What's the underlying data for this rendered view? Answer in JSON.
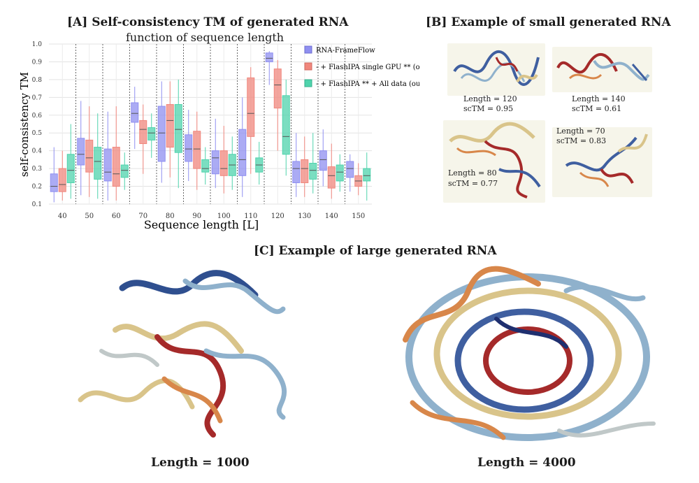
{
  "panel_a": {
    "title": "[A] Self-consistency TM of generated RNA",
    "subtitle": "function of sequence length"
  },
  "panel_b": {
    "title": "[B] Example of small generated RNA",
    "examples": [
      {
        "length": "Length = 120",
        "sctm": "scTM = 0.95"
      },
      {
        "length": "Length = 140",
        "sctm": "scTM = 0.61"
      },
      {
        "length": "Length = 80",
        "sctm": "scTM = 0.77"
      },
      {
        "length": "Length = 70",
        "sctm": "scTM = 0.83"
      }
    ]
  },
  "panel_c": {
    "title": "[C] Example of large generated RNA",
    "captions": [
      "Length = 1000",
      "Length = 4000"
    ]
  },
  "colors": {
    "rna_frameflow": "#8f8ff0",
    "flashipa_single_gpu": "#f0877d",
    "flashipa_all_data": "#4fd3ac",
    "rna_blue": "#3f5fa0",
    "rna_lightblue": "#8fb1cc",
    "rna_red": "#a52a2a",
    "rna_orange": "#d8874a",
    "rna_tan": "#d9c48a"
  },
  "chart_data": {
    "type": "box",
    "xlabel": "Sequence length [L]",
    "ylabel": "self-consistency TM",
    "ylim": [
      0.1,
      1.0
    ],
    "yticks": [
      "0.1",
      "0.2",
      "0.3",
      "0.4",
      "0.5",
      "0.6",
      "0.7",
      "0.8",
      "0.9",
      "1.0"
    ],
    "categories": [
      "40",
      "50",
      "60",
      "70",
      "80",
      "90",
      "100",
      "110",
      "120",
      "130",
      "140",
      "150"
    ],
    "grid": true,
    "legend_position": "top-right",
    "series": [
      {
        "name": "RNA-FrameFlow",
        "color": "#8f8ff0",
        "boxes": [
          {
            "q1": 0.17,
            "median": 0.2,
            "q3": 0.27,
            "lo": 0.11,
            "hi": 0.42
          },
          {
            "q1": 0.32,
            "median": 0.38,
            "q3": 0.47,
            "lo": 0.15,
            "hi": 0.68
          },
          {
            "q1": 0.23,
            "median": 0.28,
            "q3": 0.41,
            "lo": 0.12,
            "hi": 0.62
          },
          {
            "q1": 0.56,
            "median": 0.61,
            "q3": 0.67,
            "lo": 0.41,
            "hi": 0.76
          },
          {
            "q1": 0.34,
            "median": 0.5,
            "q3": 0.65,
            "lo": 0.22,
            "hi": 0.79
          },
          {
            "q1": 0.34,
            "median": 0.41,
            "q3": 0.49,
            "lo": 0.23,
            "hi": 0.63
          },
          {
            "q1": 0.27,
            "median": 0.36,
            "q3": 0.4,
            "lo": 0.19,
            "hi": 0.58
          },
          {
            "q1": 0.26,
            "median": 0.35,
            "q3": 0.52,
            "lo": 0.14,
            "hi": 0.7
          },
          {
            "q1": 0.9,
            "median": 0.92,
            "q3": 0.95,
            "lo": 0.77,
            "hi": 0.96
          },
          {
            "q1": 0.22,
            "median": 0.3,
            "q3": 0.34,
            "lo": 0.14,
            "hi": 0.5
          },
          {
            "q1": 0.29,
            "median": 0.35,
            "q3": 0.4,
            "lo": 0.2,
            "hi": 0.52
          },
          {
            "q1": 0.25,
            "median": 0.3,
            "q3": 0.34,
            "lo": 0.17,
            "hi": 0.38
          }
        ]
      },
      {
        "name": "- + FlashIPA single GPU ** (ours)",
        "color": "#f0877d",
        "boxes": [
          {
            "q1": 0.17,
            "median": 0.21,
            "q3": 0.3,
            "lo": 0.12,
            "hi": 0.4
          },
          {
            "q1": 0.28,
            "median": 0.36,
            "q3": 0.46,
            "lo": 0.14,
            "hi": 0.65
          },
          {
            "q1": 0.2,
            "median": 0.27,
            "q3": 0.42,
            "lo": 0.12,
            "hi": 0.65
          },
          {
            "q1": 0.44,
            "median": 0.52,
            "q3": 0.57,
            "lo": 0.27,
            "hi": 0.66
          },
          {
            "q1": 0.42,
            "median": 0.57,
            "q3": 0.66,
            "lo": 0.25,
            "hi": 0.79
          },
          {
            "q1": 0.3,
            "median": 0.41,
            "q3": 0.51,
            "lo": 0.18,
            "hi": 0.62
          },
          {
            "q1": 0.26,
            "median": 0.3,
            "q3": 0.4,
            "lo": 0.16,
            "hi": 0.54
          },
          {
            "q1": 0.48,
            "median": 0.61,
            "q3": 0.81,
            "lo": 0.27,
            "hi": 0.87
          },
          {
            "q1": 0.64,
            "median": 0.77,
            "q3": 0.86,
            "lo": 0.4,
            "hi": 0.91
          },
          {
            "q1": 0.22,
            "median": 0.3,
            "q3": 0.35,
            "lo": 0.14,
            "hi": 0.48
          },
          {
            "q1": 0.19,
            "median": 0.26,
            "q3": 0.31,
            "lo": 0.13,
            "hi": 0.44
          },
          {
            "q1": 0.2,
            "median": 0.23,
            "q3": 0.26,
            "lo": 0.15,
            "hi": 0.33
          }
        ]
      },
      {
        "name": "- + FlashIPA ** + All data (ours)",
        "color": "#4fd3ac",
        "boxes": [
          {
            "q1": 0.22,
            "median": 0.29,
            "q3": 0.38,
            "lo": 0.13,
            "hi": 0.55
          },
          {
            "q1": 0.24,
            "median": 0.34,
            "q3": 0.42,
            "lo": 0.13,
            "hi": 0.61
          },
          {
            "q1": 0.25,
            "median": 0.29,
            "q3": 0.32,
            "lo": 0.18,
            "hi": 0.39
          },
          {
            "q1": 0.46,
            "median": 0.5,
            "q3": 0.53,
            "lo": 0.36,
            "hi": 0.61
          },
          {
            "q1": 0.39,
            "median": 0.52,
            "q3": 0.66,
            "lo": 0.19,
            "hi": 0.8
          },
          {
            "q1": 0.28,
            "median": 0.3,
            "q3": 0.35,
            "lo": 0.21,
            "hi": 0.42
          },
          {
            "q1": 0.26,
            "median": 0.32,
            "q3": 0.38,
            "lo": 0.18,
            "hi": 0.48
          },
          {
            "q1": 0.28,
            "median": 0.32,
            "q3": 0.36,
            "lo": 0.21,
            "hi": 0.45
          },
          {
            "q1": 0.38,
            "median": 0.48,
            "q3": 0.71,
            "lo": 0.26,
            "hi": 0.8
          },
          {
            "q1": 0.24,
            "median": 0.29,
            "q3": 0.33,
            "lo": 0.16,
            "hi": 0.5
          },
          {
            "q1": 0.23,
            "median": 0.28,
            "q3": 0.32,
            "lo": 0.17,
            "hi": 0.38
          },
          {
            "q1": 0.23,
            "median": 0.26,
            "q3": 0.3,
            "lo": 0.12,
            "hi": 0.39
          }
        ]
      }
    ]
  }
}
